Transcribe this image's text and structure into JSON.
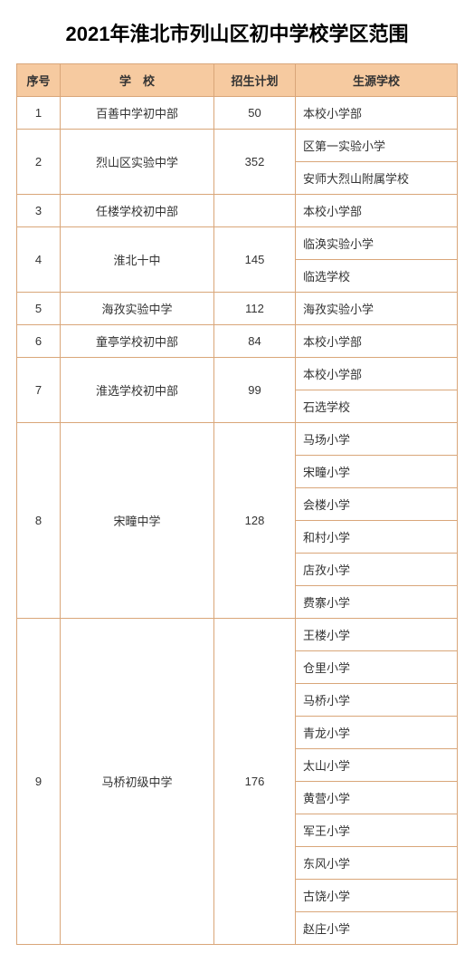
{
  "title": "2021年淮北市列山区初中学校学区范围",
  "title_fontsize": 22,
  "header_bg": "#f6caa0",
  "border_color": "#d9a679",
  "columns": [
    "序号",
    "学　校",
    "招生计划",
    "生源学校"
  ],
  "rows": [
    {
      "seq": "1",
      "school": "百善中学初中部",
      "plan": "50",
      "sources": [
        "本校小学部"
      ]
    },
    {
      "seq": "2",
      "school": "烈山区实验中学",
      "plan": "352",
      "sources": [
        "区第一实验小学",
        "安师大烈山附属学校"
      ]
    },
    {
      "seq": "3",
      "school": "任楼学校初中部",
      "plan": "",
      "sources": [
        "本校小学部"
      ]
    },
    {
      "seq": "4",
      "school": "淮北十中",
      "plan": "145",
      "sources": [
        "临涣实验小学",
        "临选学校"
      ]
    },
    {
      "seq": "5",
      "school": "海孜实验中学",
      "plan": "112",
      "sources": [
        "海孜实验小学"
      ]
    },
    {
      "seq": "6",
      "school": "童亭学校初中部",
      "plan": "84",
      "sources": [
        "本校小学部"
      ]
    },
    {
      "seq": "7",
      "school": "淮选学校初中部",
      "plan": "99",
      "sources": [
        "本校小学部",
        "石选学校"
      ]
    },
    {
      "seq": "8",
      "school": "宋疃中学",
      "plan": "128",
      "sources": [
        "马场小学",
        "宋疃小学",
        "会楼小学",
        "和村小学",
        "店孜小学",
        "费寨小学"
      ]
    },
    {
      "seq": "9",
      "school": "马桥初级中学",
      "plan": "176",
      "sources": [
        "王楼小学",
        "仓里小学",
        "马桥小学",
        "青龙小学",
        "太山小学",
        "黄营小学",
        "军王小学",
        "东风小学",
        "古饶小学",
        "赵庄小学"
      ]
    }
  ]
}
